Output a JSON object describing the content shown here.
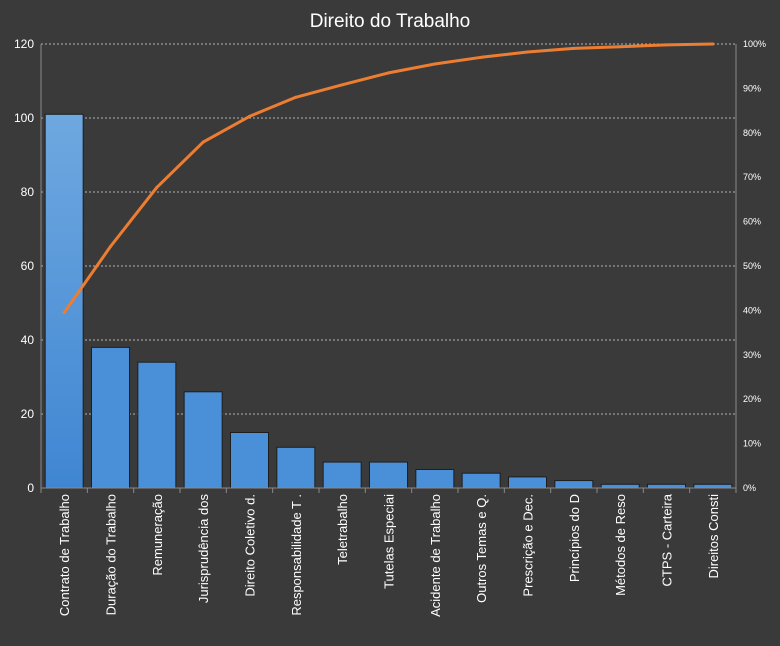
{
  "chart_data": {
    "type": "bar",
    "title": "Direito do Trabalho",
    "xlabel": "",
    "ylabel": "",
    "categories": [
      "Contrato de Trabalho",
      "Duração do Trabalho",
      "Remuneração",
      "Jurisprudência dos",
      "Direito Coletivo d.",
      "Responsabilidade T .",
      "Teletrabalho",
      "Tutelas Especiai",
      "Acidente de Trabalho",
      "Outros Temas e Q.",
      "Prescrição e Dec.",
      "Princípios do D",
      "Métodos de Reso",
      "CTPS - Carteira",
      "Direitos Consti"
    ],
    "series": [
      {
        "type": "bar",
        "axis": "left",
        "color": "#4a90d9",
        "values": [
          101,
          38,
          34,
          26,
          15,
          11,
          7,
          7,
          5,
          4,
          3,
          2,
          1,
          1,
          1
        ]
      },
      {
        "type": "line",
        "axis": "right",
        "color": "#ed7d31",
        "values": [
          39.5,
          54.4,
          67.7,
          77.9,
          83.7,
          88.0,
          90.8,
          93.5,
          95.5,
          97.0,
          98.2,
          99.0,
          99.4,
          99.8,
          100.0
        ]
      }
    ],
    "ylim": [
      0,
      120
    ],
    "yticks": [
      "0",
      "20",
      "40",
      "60",
      "80",
      "100",
      "120"
    ],
    "y2lim": [
      0,
      100
    ],
    "y2ticks": [
      "0%",
      "10%",
      "20%",
      "30%",
      "40%",
      "50%",
      "60%",
      "70%",
      "80%",
      "90%",
      "100%"
    ],
    "grid": true,
    "legend": "none"
  },
  "colors": {
    "background": "#3a3a3a",
    "bar": "#4a90d9",
    "line": "#ed7d31",
    "text": "#ffffff",
    "grid": "#cfcfcf"
  }
}
